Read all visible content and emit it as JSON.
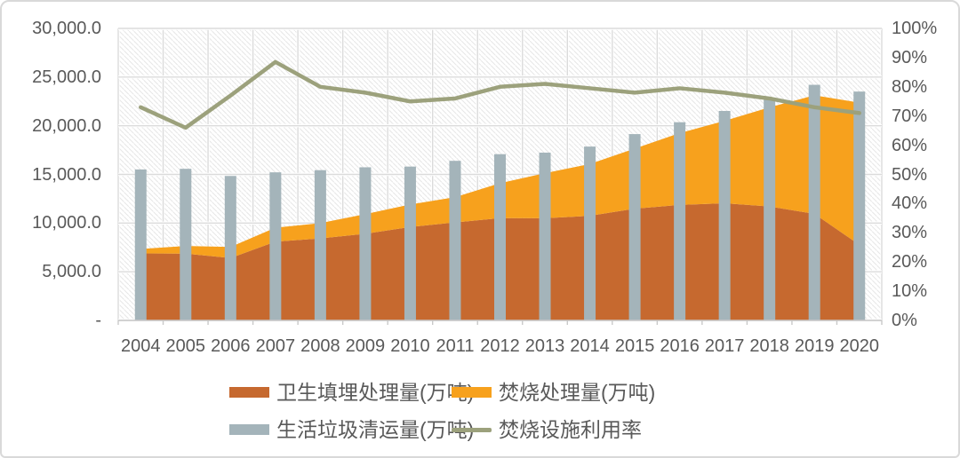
{
  "chart_data": {
    "type": "combo",
    "title": "",
    "x": [
      "2004",
      "2005",
      "2006",
      "2007",
      "2008",
      "2009",
      "2010",
      "2011",
      "2012",
      "2013",
      "2014",
      "2015",
      "2016",
      "2017",
      "2018",
      "2019",
      "2020"
    ],
    "series": [
      {
        "name": "卫生填埋处理量(万吨)",
        "type": "area-stacked",
        "axis": "left",
        "color": "#C6692F",
        "values": [
          6888.7,
          6857.4,
          6408.2,
          8088.9,
          8424.0,
          8898.6,
          9598.3,
          10063.7,
          10512.5,
          10492.7,
          10744.3,
          11483.1,
          11866.4,
          12037.6,
          11706.0,
          10948.0,
          7771.5
        ]
      },
      {
        "name": "焚烧处理量(万吨)",
        "type": "area-stacked",
        "axis": "left",
        "color": "#F7A11D",
        "values": [
          449.5,
          791.1,
          1138.0,
          1434.7,
          1569.7,
          2022.0,
          2316.7,
          2599.3,
          3584.1,
          4633.7,
          5329.9,
          6175.5,
          7378.4,
          8463.3,
          10184.9,
          12174.2,
          14607.6
        ]
      },
      {
        "name": "生活垃圾清运量(万吨)",
        "type": "bar",
        "axis": "left",
        "color": "#A4B4BA",
        "values": [
          15509.5,
          15576.8,
          14841.3,
          15214.5,
          15437.7,
          15733.7,
          15804.8,
          16395.3,
          17080.9,
          17238.6,
          17860.2,
          19141.9,
          20362.0,
          21520.9,
          22801.8,
          24206.2,
          23511.7
        ]
      },
      {
        "name": "焚烧设施利用率",
        "type": "line",
        "axis": "right",
        "color": "#9CA17C",
        "values": [
          73,
          66,
          77,
          88.5,
          80,
          78,
          75,
          76,
          80,
          81,
          79.5,
          78,
          79.5,
          78,
          76,
          73,
          71
        ]
      }
    ],
    "left_axis": {
      "min": 0,
      "max": 30000,
      "step": 5000,
      "tick_labels": [
        "-",
        "5,000.0",
        "10,000.0",
        "15,000.0",
        "20,000.0",
        "25,000.0",
        "30,000.0"
      ]
    },
    "right_axis": {
      "min": 0,
      "max": 100,
      "step": 10,
      "tick_labels": [
        "0%",
        "10%",
        "20%",
        "30%",
        "40%",
        "50%",
        "60%",
        "70%",
        "80%",
        "90%",
        "100%"
      ]
    },
    "grid": true,
    "legend_position": "bottom",
    "plot_background": "diagonal-hatch",
    "colors": {
      "text": "#595959",
      "gridline": "#DBDBDB",
      "axis_line": "#C9C9C9",
      "hatch_line": "#E6E6E6",
      "frame_border": "#D9D9D9"
    }
  }
}
